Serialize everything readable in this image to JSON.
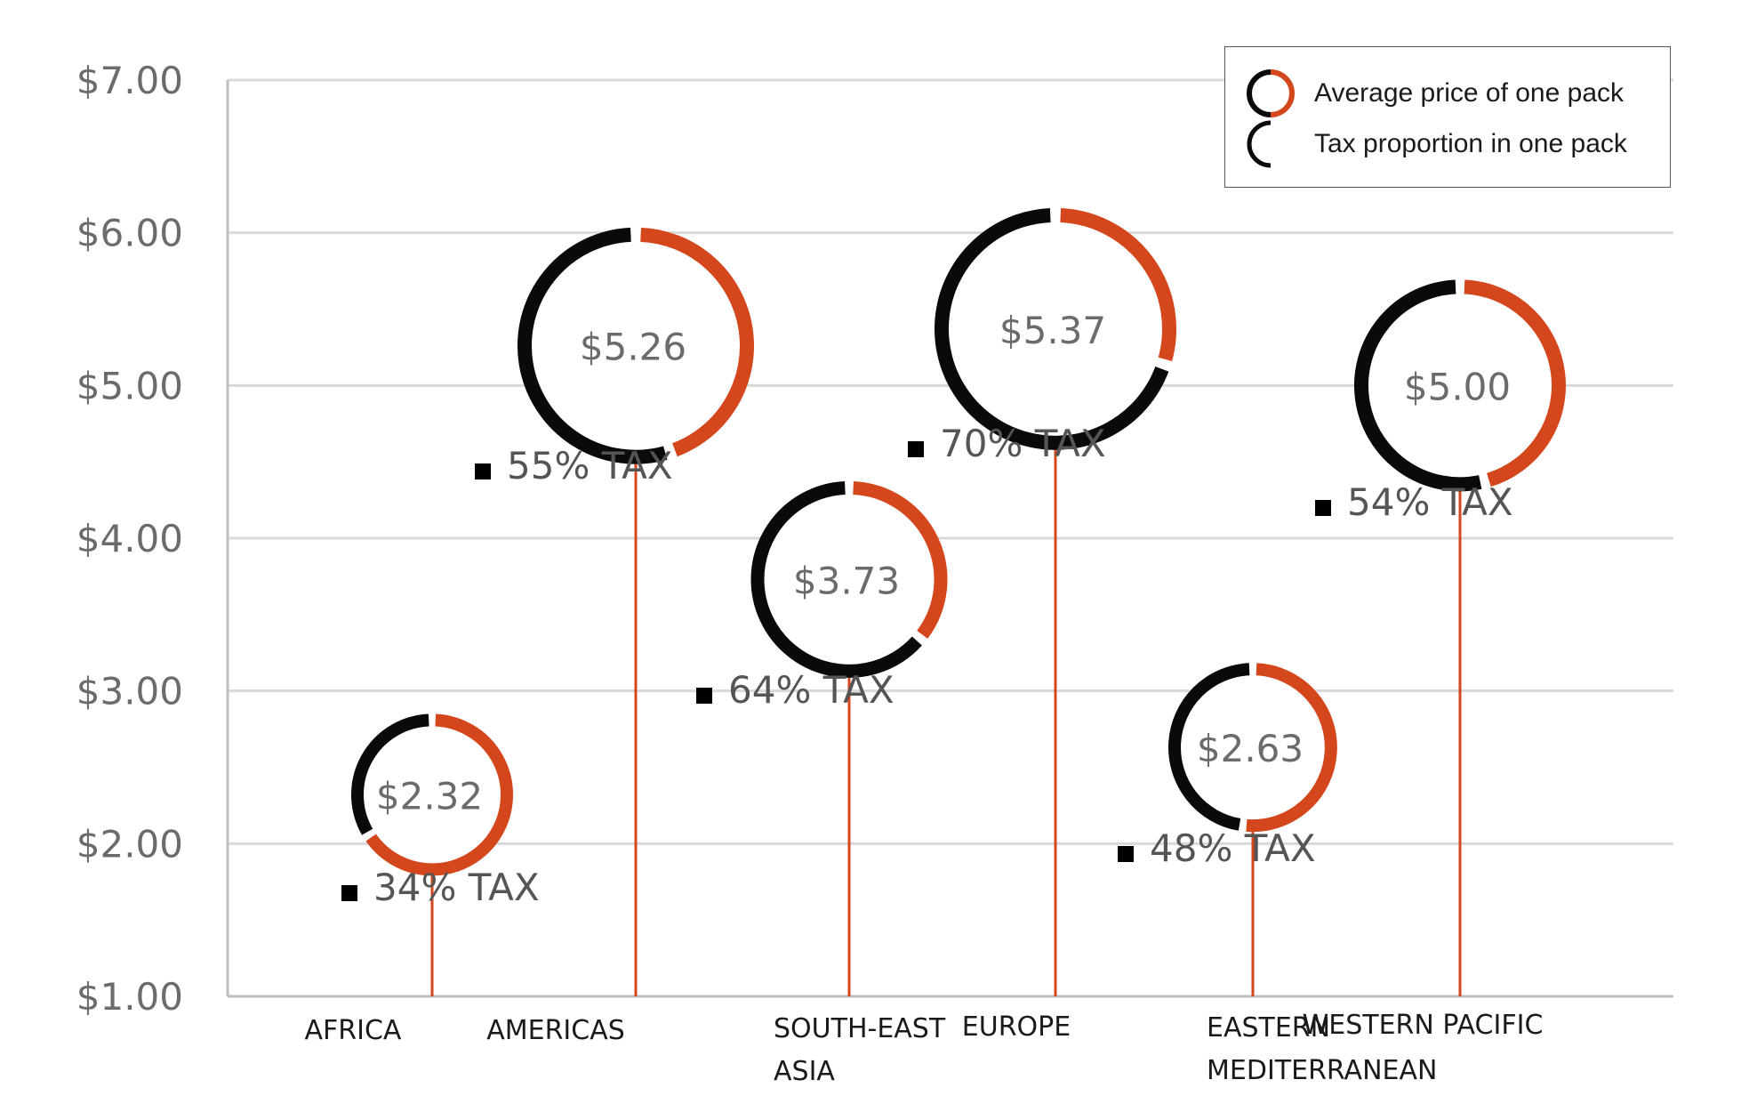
{
  "chart_data": {
    "type": "lollipop-donut",
    "y_ticks": [
      "$1.00",
      "$2.00",
      "$3.00",
      "$4.00",
      "$5.00",
      "$6.00",
      "$7.00"
    ],
    "ylim": [
      1,
      7
    ],
    "grid": true,
    "legend_position": "top-right",
    "legend": {
      "price_label": "Average price of one pack",
      "tax_label": "Tax proportion in one pack"
    },
    "colors": {
      "price": "#d4461c",
      "tax": "#0a0a0a",
      "stem": "#d4461c",
      "grid": "#d9d9d9",
      "axis": "#bfbfbf"
    },
    "categories": [
      {
        "name": "AFRICA",
        "price": 2.32,
        "price_label": "$2.32",
        "tax_pct": 34,
        "tax_label": "34% TAX"
      },
      {
        "name": "AMERICAS",
        "price": 5.26,
        "price_label": "$5.26",
        "tax_pct": 55,
        "tax_label": "55% TAX"
      },
      {
        "name": "SOUTH-EAST ASIA",
        "price": 3.73,
        "price_label": "$3.73",
        "tax_pct": 64,
        "tax_label": "64% TAX"
      },
      {
        "name": "EUROPE",
        "price": 5.37,
        "price_label": "$5.37",
        "tax_pct": 70,
        "tax_label": "70% TAX"
      },
      {
        "name": "EASTERN MEDITERRANEAN",
        "price": 2.63,
        "price_label": "$2.63",
        "tax_pct": 48,
        "tax_label": "48% TAX"
      },
      {
        "name": "WESTERN PACIFIC",
        "price": 5.0,
        "price_label": "$5.00",
        "tax_pct": 54,
        "tax_label": "54% TAX"
      }
    ]
  }
}
